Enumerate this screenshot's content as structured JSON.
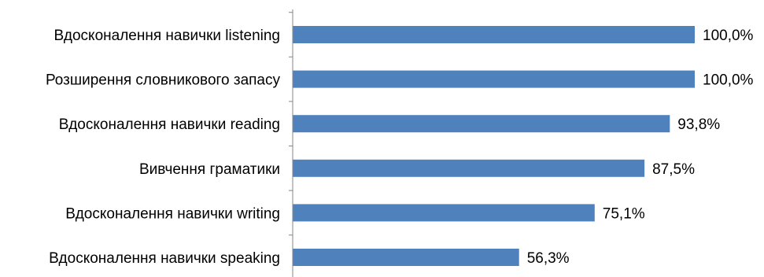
{
  "chart_data": {
    "type": "bar",
    "orientation": "horizontal",
    "categories": [
      "Вдосконалення навички listening",
      "Розширення словникового запасу",
      "Вдосконалення навички reading",
      "Вивчення граматики",
      "Вдосконалення навички writing",
      "Вдосконалення навички speaking"
    ],
    "values": [
      100.0,
      100.0,
      93.8,
      87.5,
      75.1,
      56.3
    ],
    "value_labels": [
      "100,0%",
      "100,0%",
      "93,8%",
      "87,5%",
      "75,1%",
      "56,3%"
    ],
    "xlim": [
      0,
      100
    ],
    "grid": false,
    "legend": "none",
    "bar_color": "#4F81BD"
  }
}
